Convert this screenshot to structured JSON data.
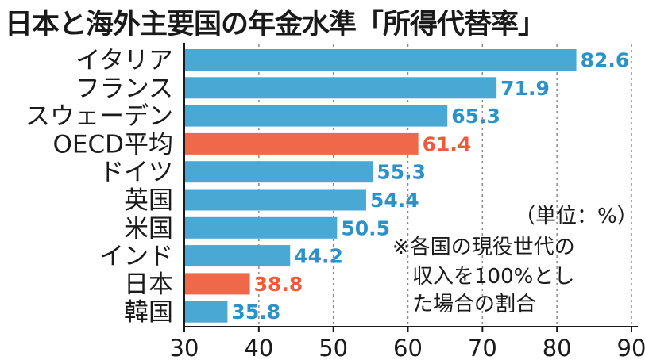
{
  "chart_data": {
    "type": "bar",
    "orientation": "horizontal",
    "title": "日本と海外主要国の年金水準「所得代替率」",
    "categories": [
      "イタリア",
      "フランス",
      "スウェーデン",
      "OECD平均",
      "ドイツ",
      "英国",
      "米国",
      "インド",
      "日本",
      "韓国"
    ],
    "values": [
      82.6,
      71.9,
      65.3,
      61.4,
      55.3,
      54.4,
      50.5,
      44.2,
      38.8,
      35.8
    ],
    "value_labels": [
      "82.6",
      "71.9",
      "65.3",
      "61.4",
      "55.3",
      "54.4",
      "50.5",
      "44.2",
      "38.8",
      "35.8"
    ],
    "highlight": [
      false,
      false,
      false,
      true,
      false,
      false,
      false,
      false,
      true,
      false
    ],
    "xlim": [
      30,
      90
    ],
    "xticks": [
      "30",
      "40",
      "50",
      "60",
      "70",
      "80",
      "90"
    ],
    "xtick_values": [
      30,
      40,
      50,
      60,
      70,
      80,
      90
    ],
    "grid": "vertical dashed",
    "unit_note": "（単位：%）",
    "note_lines": [
      "※各国の現役世代の",
      "収入を100%とし",
      "た場合の割合"
    ],
    "colors": {
      "bar": "#4aa8d4",
      "highlight": "#f0684a",
      "value_text": "#2a92c8",
      "highlight_text": "#ee5a3a"
    }
  }
}
